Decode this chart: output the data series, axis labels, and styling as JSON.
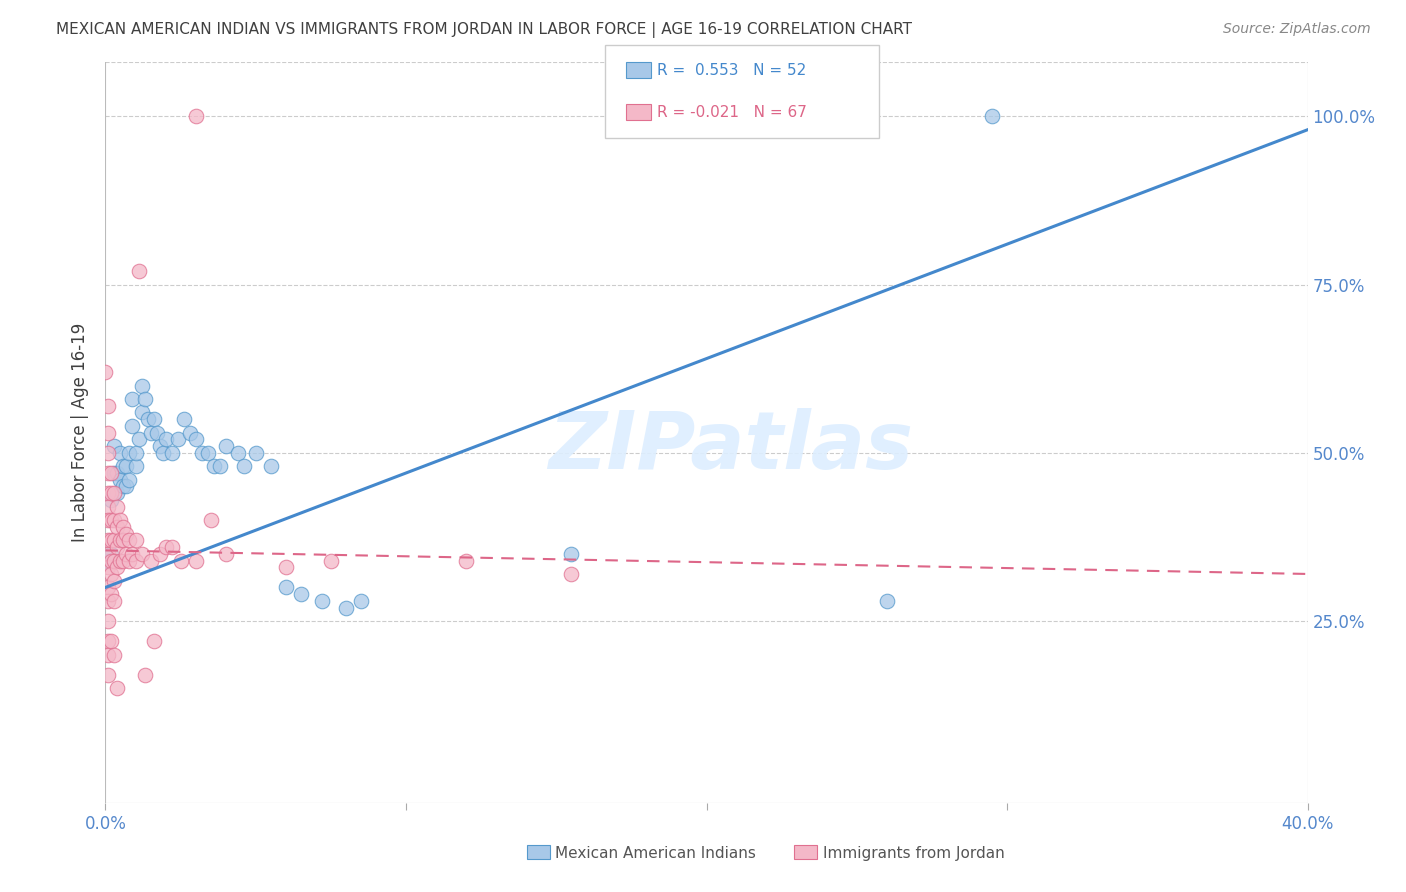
{
  "title": "MEXICAN AMERICAN INDIAN VS IMMIGRANTS FROM JORDAN IN LABOR FORCE | AGE 16-19 CORRELATION CHART",
  "source": "Source: ZipAtlas.com",
  "ylabel": "In Labor Force | Age 16-19",
  "xlim": [
    0.0,
    0.4
  ],
  "ylim": [
    -0.02,
    1.08
  ],
  "xtick_positions": [
    0.0,
    0.1,
    0.2,
    0.3,
    0.4
  ],
  "xticklabels": [
    "0.0%",
    "",
    "",
    "",
    "40.0%"
  ],
  "ytick_positions": [
    0.0,
    0.25,
    0.5,
    0.75,
    1.0
  ],
  "ytick_labels_right": [
    "",
    "25.0%",
    "50.0%",
    "75.0%",
    "100.0%"
  ],
  "blue_color": "#a8c8e8",
  "pink_color": "#f4b8c8",
  "blue_edge_color": "#5599cc",
  "pink_edge_color": "#e07090",
  "blue_line_color": "#4488cc",
  "pink_line_color": "#dd6688",
  "axis_color": "#5588cc",
  "title_color": "#404040",
  "source_color": "#888888",
  "watermark": "ZIPatlas",
  "watermark_color": "#ddeeff",
  "legend_R_blue": "R =  0.553",
  "legend_N_blue": "N = 52",
  "legend_R_pink": "R = -0.021",
  "legend_N_pink": "N = 67",
  "legend_label_blue": "Mexican American Indians",
  "legend_label_pink": "Immigrants from Jordan",
  "blue_trend_x": [
    0.0,
    0.4
  ],
  "blue_trend_y": [
    0.3,
    0.98
  ],
  "pink_trend_x": [
    0.0,
    0.4
  ],
  "pink_trend_y": [
    0.355,
    0.32
  ],
  "blue_scatter": [
    [
      0.001,
      0.34
    ],
    [
      0.002,
      0.35
    ],
    [
      0.002,
      0.43
    ],
    [
      0.003,
      0.47
    ],
    [
      0.003,
      0.51
    ],
    [
      0.004,
      0.47
    ],
    [
      0.004,
      0.44
    ],
    [
      0.005,
      0.46
    ],
    [
      0.005,
      0.5
    ],
    [
      0.006,
      0.45
    ],
    [
      0.006,
      0.48
    ],
    [
      0.007,
      0.45
    ],
    [
      0.007,
      0.48
    ],
    [
      0.008,
      0.5
    ],
    [
      0.008,
      0.46
    ],
    [
      0.009,
      0.54
    ],
    [
      0.009,
      0.58
    ],
    [
      0.01,
      0.48
    ],
    [
      0.01,
      0.5
    ],
    [
      0.011,
      0.52
    ],
    [
      0.012,
      0.56
    ],
    [
      0.012,
      0.6
    ],
    [
      0.013,
      0.58
    ],
    [
      0.014,
      0.55
    ],
    [
      0.015,
      0.53
    ],
    [
      0.016,
      0.55
    ],
    [
      0.017,
      0.53
    ],
    [
      0.018,
      0.51
    ],
    [
      0.019,
      0.5
    ],
    [
      0.02,
      0.52
    ],
    [
      0.022,
      0.5
    ],
    [
      0.024,
      0.52
    ],
    [
      0.026,
      0.55
    ],
    [
      0.028,
      0.53
    ],
    [
      0.03,
      0.52
    ],
    [
      0.032,
      0.5
    ],
    [
      0.034,
      0.5
    ],
    [
      0.036,
      0.48
    ],
    [
      0.038,
      0.48
    ],
    [
      0.04,
      0.51
    ],
    [
      0.044,
      0.5
    ],
    [
      0.046,
      0.48
    ],
    [
      0.05,
      0.5
    ],
    [
      0.055,
      0.48
    ],
    [
      0.06,
      0.3
    ],
    [
      0.065,
      0.29
    ],
    [
      0.072,
      0.28
    ],
    [
      0.08,
      0.27
    ],
    [
      0.085,
      0.28
    ],
    [
      0.155,
      0.35
    ],
    [
      0.26,
      0.28
    ],
    [
      0.295,
      1.0
    ]
  ],
  "pink_scatter": [
    [
      0.0,
      0.62
    ],
    [
      0.001,
      0.57
    ],
    [
      0.001,
      0.53
    ],
    [
      0.001,
      0.5
    ],
    [
      0.001,
      0.47
    ],
    [
      0.001,
      0.44
    ],
    [
      0.001,
      0.42
    ],
    [
      0.001,
      0.4
    ],
    [
      0.001,
      0.37
    ],
    [
      0.001,
      0.35
    ],
    [
      0.001,
      0.33
    ],
    [
      0.001,
      0.3
    ],
    [
      0.001,
      0.28
    ],
    [
      0.001,
      0.25
    ],
    [
      0.001,
      0.22
    ],
    [
      0.001,
      0.2
    ],
    [
      0.001,
      0.17
    ],
    [
      0.002,
      0.47
    ],
    [
      0.002,
      0.44
    ],
    [
      0.002,
      0.4
    ],
    [
      0.002,
      0.37
    ],
    [
      0.002,
      0.34
    ],
    [
      0.002,
      0.32
    ],
    [
      0.002,
      0.29
    ],
    [
      0.002,
      0.22
    ],
    [
      0.003,
      0.44
    ],
    [
      0.003,
      0.4
    ],
    [
      0.003,
      0.37
    ],
    [
      0.003,
      0.34
    ],
    [
      0.003,
      0.31
    ],
    [
      0.003,
      0.28
    ],
    [
      0.003,
      0.2
    ],
    [
      0.004,
      0.42
    ],
    [
      0.004,
      0.39
    ],
    [
      0.004,
      0.36
    ],
    [
      0.004,
      0.33
    ],
    [
      0.004,
      0.15
    ],
    [
      0.005,
      0.4
    ],
    [
      0.005,
      0.37
    ],
    [
      0.005,
      0.34
    ],
    [
      0.006,
      0.39
    ],
    [
      0.006,
      0.37
    ],
    [
      0.006,
      0.34
    ],
    [
      0.007,
      0.38
    ],
    [
      0.007,
      0.35
    ],
    [
      0.008,
      0.37
    ],
    [
      0.008,
      0.34
    ],
    [
      0.009,
      0.35
    ],
    [
      0.01,
      0.37
    ],
    [
      0.01,
      0.34
    ],
    [
      0.011,
      0.77
    ],
    [
      0.012,
      0.35
    ],
    [
      0.013,
      0.17
    ],
    [
      0.015,
      0.34
    ],
    [
      0.016,
      0.22
    ],
    [
      0.018,
      0.35
    ],
    [
      0.02,
      0.36
    ],
    [
      0.022,
      0.36
    ],
    [
      0.025,
      0.34
    ],
    [
      0.03,
      0.34
    ],
    [
      0.03,
      1.0
    ],
    [
      0.035,
      0.4
    ],
    [
      0.04,
      0.35
    ],
    [
      0.06,
      0.33
    ],
    [
      0.075,
      0.34
    ],
    [
      0.12,
      0.34
    ],
    [
      0.155,
      0.32
    ]
  ]
}
